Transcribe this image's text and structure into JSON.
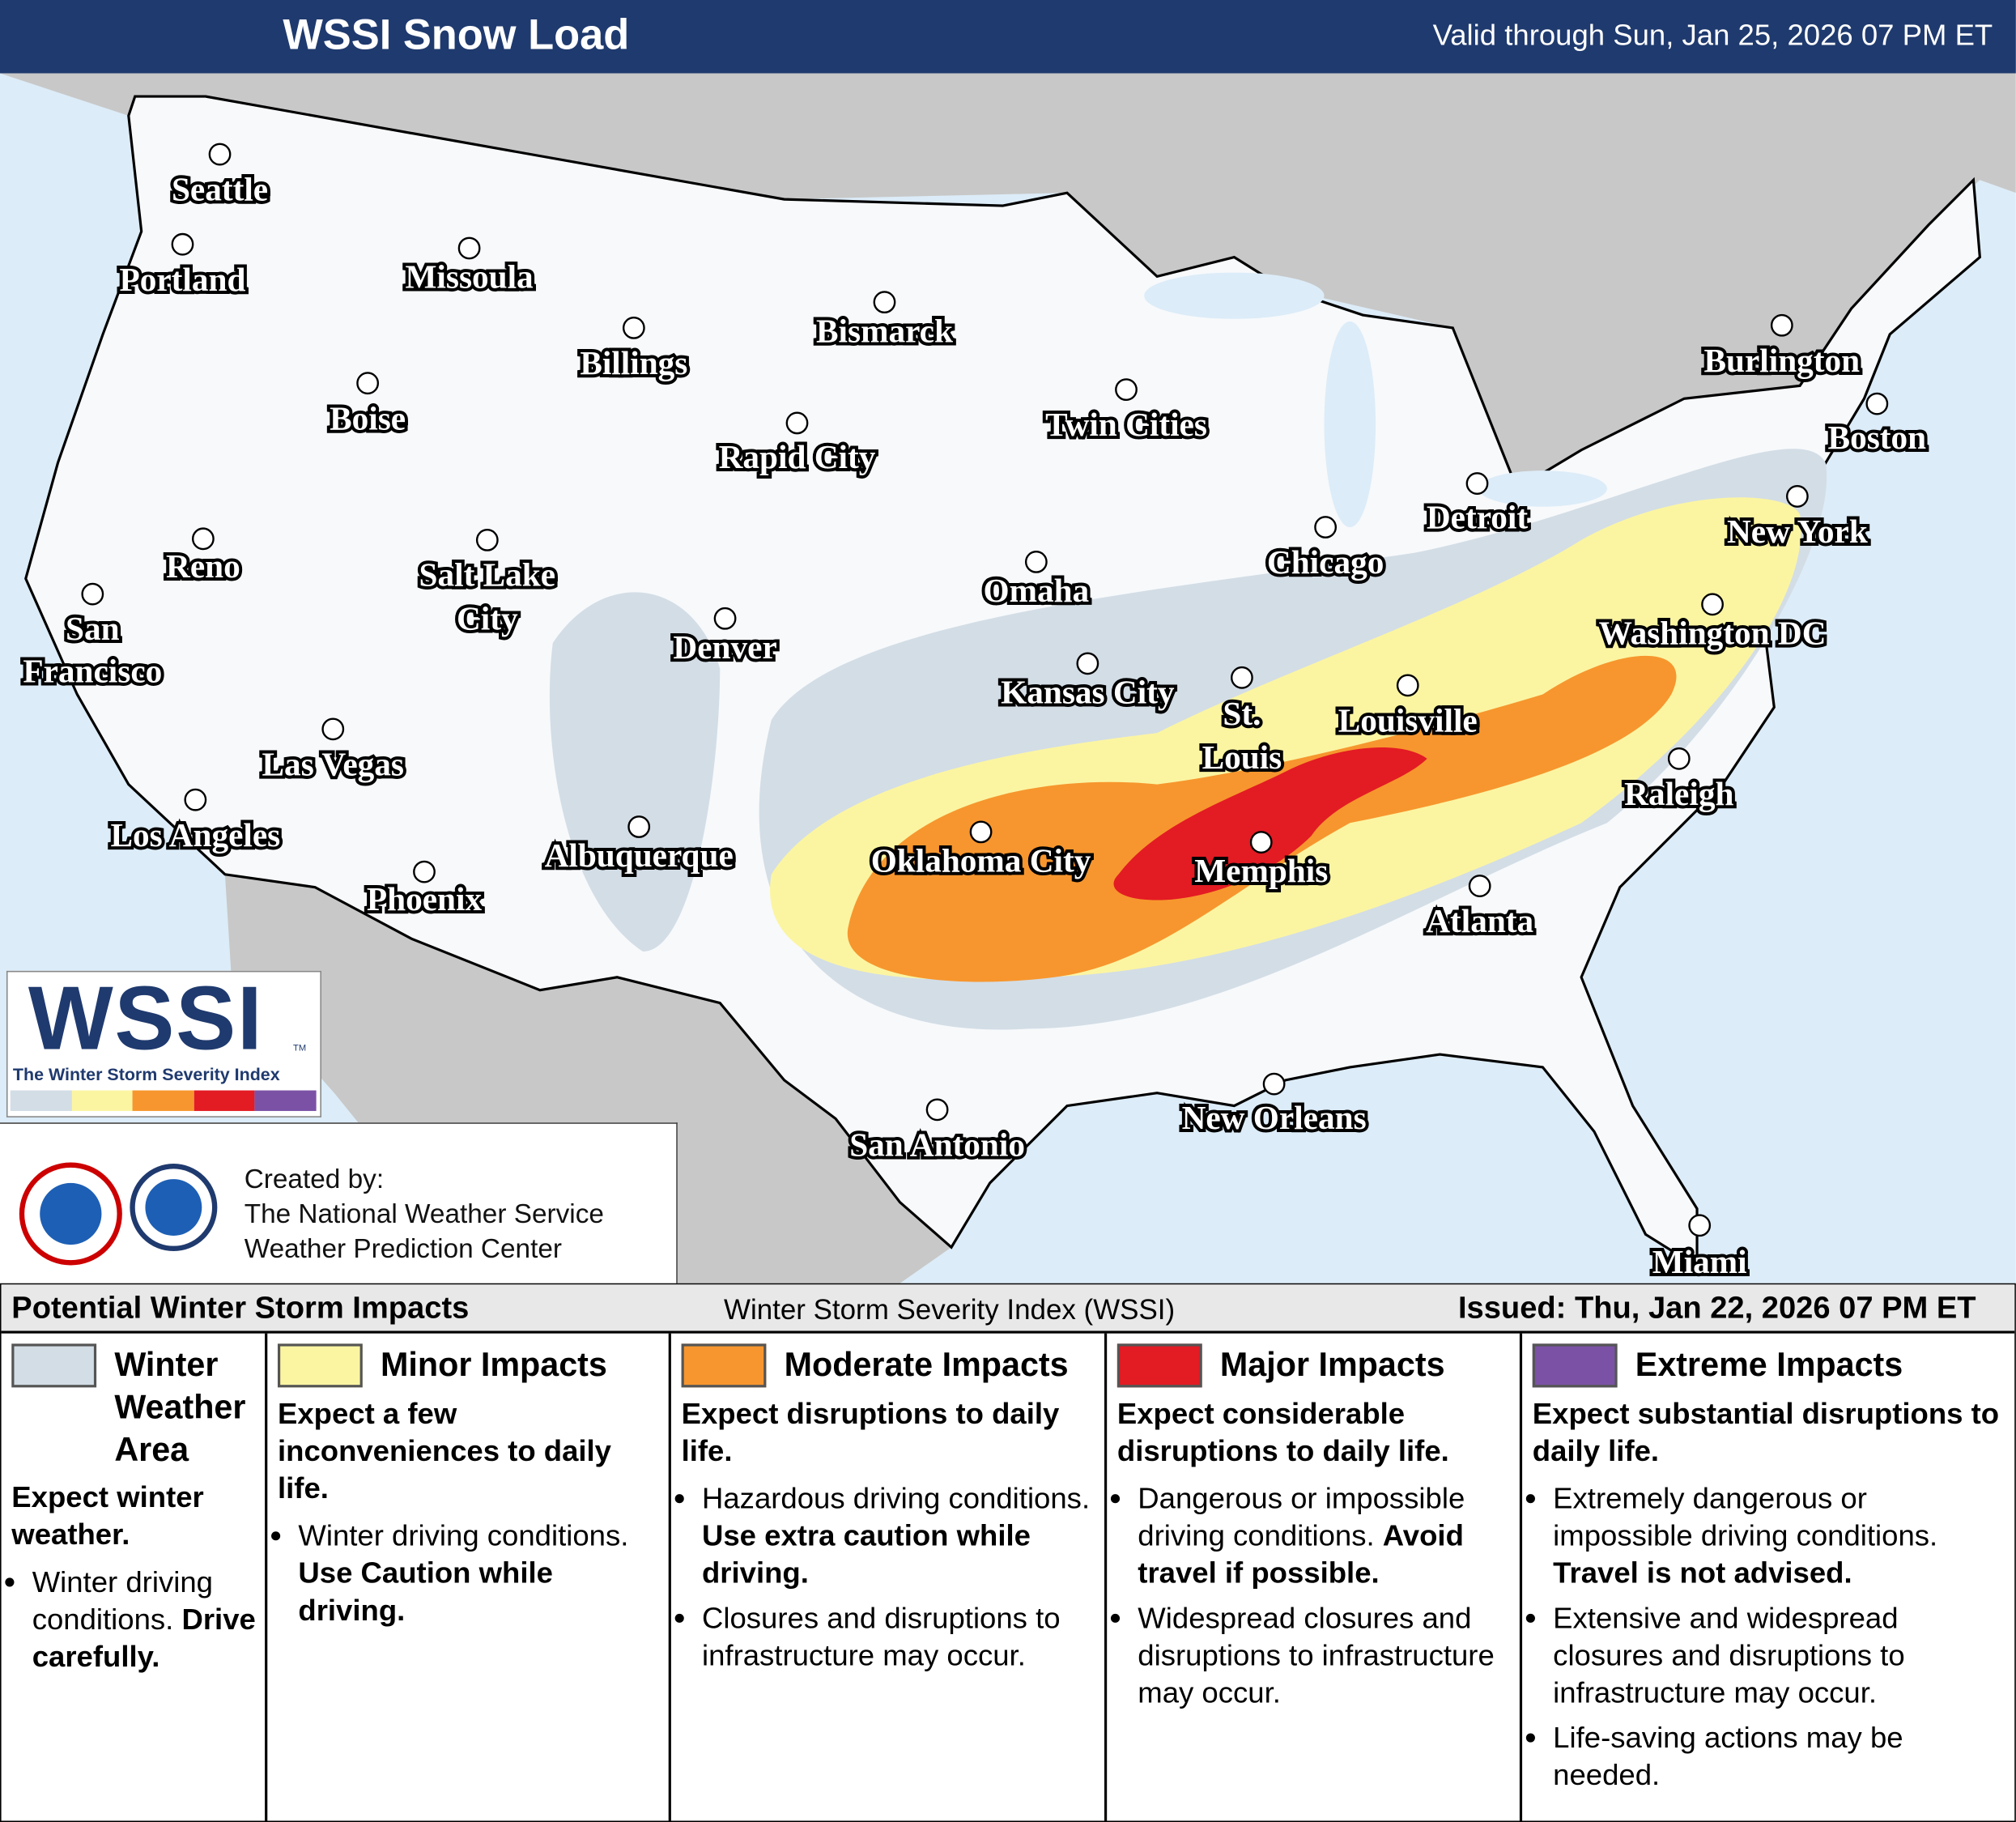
{
  "header": {
    "title": "WSSI Snow Load",
    "valid": "Valid through Sun, Jan 25, 2026 07 PM ET"
  },
  "map": {
    "cities": [
      "Seattle",
      "Portland",
      "Missoula",
      "Billings",
      "Bismarck",
      "Boise",
      "Rapid City",
      "Twin Cities",
      "Burlington",
      "Boston",
      "Reno",
      "Salt Lake City",
      "Chicago",
      "Detroit",
      "New York",
      "Omaha",
      "Denver",
      "San Francisco",
      "Washington DC",
      "Kansas City",
      "St. Louis",
      "Louisville",
      "Las Vegas",
      "Raleigh",
      "Los Angeles",
      "Albuquerque",
      "Oklahoma City",
      "Memphis",
      "Phoenix",
      "Atlanta",
      "San Antonio",
      "New Orleans",
      "Miami"
    ]
  },
  "logo": {
    "text": "WSSI",
    "tm": "TM",
    "subtitle": "The Winter Storm Severity Index"
  },
  "credits": {
    "lines": [
      "Created by:",
      "The National Weather Service",
      "Weather Prediction Center"
    ]
  },
  "legend": {
    "title": "Potential Winter Storm Impacts",
    "center": "Winter Storm Severity Index (WSSI)",
    "issued": "Issued: Thu, Jan 22, 2026 07 PM ET",
    "categories": [
      {
        "name": "Winter Weather Area",
        "color": "#d3dde6",
        "summary": "Expect winter weather.",
        "bullets": [
          [
            {
              "text": "Winter driving conditions. "
            },
            {
              "text": "Drive carefully.",
              "bold": true
            }
          ]
        ]
      },
      {
        "name": "Minor Impacts",
        "color": "#fbf5a2",
        "summary": "Expect a few inconveniences to daily life.",
        "bullets": [
          [
            {
              "text": "Winter driving conditions. "
            },
            {
              "text": "Use Caution while driving.",
              "bold": true
            }
          ]
        ]
      },
      {
        "name": "Moderate Impacts",
        "color": "#f7962e",
        "summary": "Expect disruptions to daily life.",
        "bullets": [
          [
            {
              "text": "Hazardous driving conditions. "
            },
            {
              "text": "Use extra caution while driving.",
              "bold": true
            }
          ],
          [
            {
              "text": "Closures and disruptions to infrastructure may occur."
            }
          ]
        ]
      },
      {
        "name": "Major Impacts",
        "color": "#e31b23",
        "summary": "Expect considerable disruptions to daily life.",
        "bullets": [
          [
            {
              "text": "Dangerous or impossible driving conditions. "
            },
            {
              "text": "Avoid travel if possible.",
              "bold": true
            }
          ],
          [
            {
              "text": "Widespread closures and disruptions to infrastructure may occur."
            }
          ]
        ]
      },
      {
        "name": "Extreme Impacts",
        "color": "#7b51a6",
        "summary": "Expect substantial disruptions to daily life.",
        "bullets": [
          [
            {
              "text": "Extremely dangerous or impossible driving conditions. "
            },
            {
              "text": "Travel is not advised.",
              "bold": true
            }
          ],
          [
            {
              "text": "Extensive and widespread closures and disruptions to infrastructure may occur."
            }
          ],
          [
            {
              "text": "Life-saving actions may be needed."
            }
          ]
        ]
      }
    ]
  }
}
